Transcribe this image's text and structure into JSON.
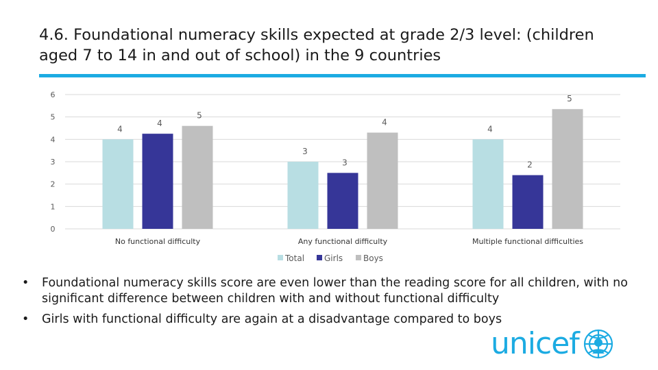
{
  "title": "4.6. Foundational numeracy skills expected at grade 2/3 level: (children aged 7 to 14 in and out of school) in the 9 countries",
  "colors": {
    "accent": "#1CABE2",
    "total": "#B8DEE3",
    "girls": "#363698",
    "boys": "#BFBFBF",
    "grid": "#D9D9D9",
    "text": "#595959",
    "logo": "#1CABE2"
  },
  "chart_data": {
    "type": "bar",
    "categories": [
      "No functional difficulty",
      "Any functional difficulty",
      "Multiple functional difficulties"
    ],
    "series": [
      {
        "name": "Total",
        "values": [
          4.0,
          3.0,
          4.0
        ],
        "labels": [
          "4",
          "3",
          "4"
        ]
      },
      {
        "name": "Girls",
        "values": [
          4.25,
          2.5,
          2.4
        ],
        "labels": [
          "4",
          "3",
          "2"
        ]
      },
      {
        "name": "Boys",
        "values": [
          4.6,
          4.3,
          5.35
        ],
        "labels": [
          "5",
          "4",
          "5"
        ]
      }
    ],
    "yticks": [
      "0",
      "1",
      "2",
      "3",
      "4",
      "5",
      "6"
    ],
    "ylim": [
      0,
      6
    ],
    "grid": true,
    "legend": "bottom"
  },
  "bullets": [
    "Foundational numeracy skills score are even lower than the reading score for all children, with no significant difference between children with and without functional difficulty",
    "Girls with functional difficulty are again at a disadvantage compared to boys"
  ],
  "bullet_symbol": "•",
  "logo": {
    "text": "unicef",
    "icon": "unicef-emblem-icon"
  }
}
